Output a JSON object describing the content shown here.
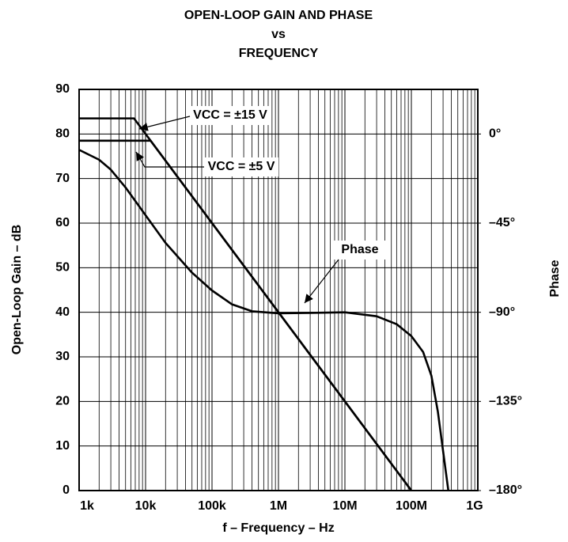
{
  "chart_data": {
    "type": "line",
    "title": [
      "OPEN-LOOP GAIN AND PHASE",
      "vs",
      "FREQUENCY"
    ],
    "x_label": "f – Frequency – Hz",
    "y_label": "Open-Loop Gain – dB",
    "y2_label": "Phase",
    "x_scale": "log",
    "grid": true,
    "xlim": [
      1000,
      1000000000
    ],
    "xticks": [
      {
        "value": 1000,
        "label": "1k"
      },
      {
        "value": 10000,
        "label": "10k"
      },
      {
        "value": 100000,
        "label": "100k"
      },
      {
        "value": 1000000,
        "label": "1M"
      },
      {
        "value": 10000000,
        "label": "10M"
      },
      {
        "value": 100000000,
        "label": "100M"
      },
      {
        "value": 1000000000,
        "label": "1G"
      }
    ],
    "ylim": [
      0,
      90
    ],
    "yticks": [
      0,
      10,
      20,
      30,
      40,
      50,
      60,
      70,
      80,
      90
    ],
    "y2lim": [
      -180,
      22.5
    ],
    "y2ticks": [
      {
        "value": 0,
        "label": "0°"
      },
      {
        "value": -45,
        "label": "–45°"
      },
      {
        "value": -90,
        "label": "–90°"
      },
      {
        "value": -135,
        "label": "–135°"
      },
      {
        "value": -180,
        "label": "–180°"
      }
    ],
    "series": [
      {
        "name": "VCC = ±15 V",
        "color": "#000000",
        "x": [
          1000,
          6700,
          100000000
        ],
        "values": [
          83.5,
          83.5,
          0
        ]
      },
      {
        "name": "VCC = ±5 V",
        "color": "#000000",
        "x": [
          1000,
          11900,
          100000000
        ],
        "values": [
          78.5,
          78.5,
          0
        ]
      },
      {
        "name": "Phase",
        "color": "#000000",
        "axis": "y2",
        "x": [
          1000,
          2000,
          3000,
          5000,
          10000,
          20000,
          50000,
          100000,
          200000,
          400000,
          1000000,
          3000000,
          10000000,
          30000000,
          60000000,
          100000000,
          150000000,
          200000000,
          250000000,
          300000000,
          360000000
        ],
        "values": [
          -8,
          -13,
          -18,
          -27,
          -41,
          -55,
          -70,
          -79,
          -86,
          -89.5,
          -90.5,
          -90.3,
          -90,
          -92,
          -96,
          -102,
          -110,
          -122,
          -140,
          -160,
          -180
        ]
      }
    ]
  }
}
